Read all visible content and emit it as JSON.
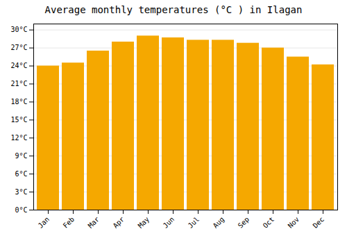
{
  "chart_data": {
    "type": "bar",
    "title": "Average monthly temperatures (°C ) in Ilagan",
    "categories": [
      "Jan",
      "Feb",
      "Mar",
      "Apr",
      "May",
      "Jun",
      "Jul",
      "Aug",
      "Sep",
      "Oct",
      "Nov",
      "Dec"
    ],
    "values": [
      24.0,
      24.5,
      26.5,
      28.0,
      29.0,
      28.7,
      28.3,
      28.3,
      27.8,
      27.0,
      25.5,
      24.2
    ],
    "color": "#F5A800",
    "ylim": [
      0,
      31
    ],
    "yticks": [
      {
        "value": 0,
        "label": "0°C"
      },
      {
        "value": 3,
        "label": "3°C"
      },
      {
        "value": 6,
        "label": "6°C"
      },
      {
        "value": 9,
        "label": "9°C"
      },
      {
        "value": 12,
        "label": "12°C"
      },
      {
        "value": 15,
        "label": "15°C"
      },
      {
        "value": 18,
        "label": "18°C"
      },
      {
        "value": 21,
        "label": "21°C"
      },
      {
        "value": 24,
        "label": "24°C"
      },
      {
        "value": 27,
        "label": "27°C"
      },
      {
        "value": 30,
        "label": "30°C"
      }
    ],
    "grid": true
  }
}
